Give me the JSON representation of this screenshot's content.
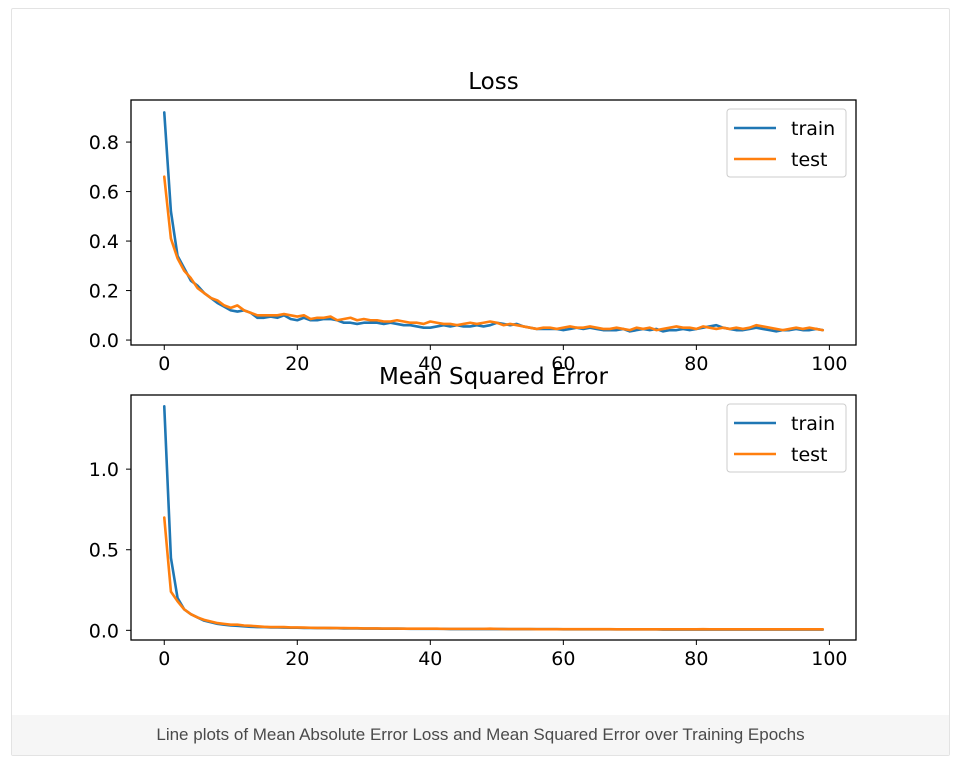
{
  "caption": "Line plots of Mean Absolute Error Loss and Mean Squared Error over Training Epochs",
  "colors": {
    "train": "#1f77b4",
    "test": "#ff7f0e"
  },
  "chart_data": [
    {
      "type": "line",
      "title": "Loss",
      "xlabel": "",
      "ylabel": "",
      "xlim": [
        -5,
        104
      ],
      "ylim": [
        -0.02,
        0.97
      ],
      "xticks": [
        0,
        20,
        40,
        60,
        80,
        100
      ],
      "yticks": [
        0.0,
        0.2,
        0.4,
        0.6,
        0.8
      ],
      "ytick_labels": [
        "0.0",
        "0.2",
        "0.4",
        "0.6",
        "0.8"
      ],
      "legend_position": "top-right",
      "series": [
        {
          "name": "train",
          "values": [
            0.92,
            0.52,
            0.34,
            0.29,
            0.24,
            0.22,
            0.19,
            0.17,
            0.15,
            0.135,
            0.12,
            0.115,
            0.12,
            0.11,
            0.09,
            0.09,
            0.095,
            0.09,
            0.1,
            0.085,
            0.08,
            0.09,
            0.08,
            0.08,
            0.085,
            0.085,
            0.08,
            0.07,
            0.07,
            0.065,
            0.07,
            0.07,
            0.07,
            0.065,
            0.07,
            0.065,
            0.06,
            0.06,
            0.055,
            0.05,
            0.05,
            0.055,
            0.06,
            0.055,
            0.06,
            0.055,
            0.055,
            0.06,
            0.055,
            0.06,
            0.07,
            0.065,
            0.06,
            0.065,
            0.055,
            0.05,
            0.045,
            0.045,
            0.045,
            0.045,
            0.04,
            0.045,
            0.05,
            0.045,
            0.05,
            0.045,
            0.04,
            0.04,
            0.04,
            0.045,
            0.035,
            0.04,
            0.045,
            0.04,
            0.045,
            0.035,
            0.04,
            0.04,
            0.045,
            0.04,
            0.045,
            0.05,
            0.055,
            0.06,
            0.05,
            0.045,
            0.04,
            0.04,
            0.045,
            0.05,
            0.045,
            0.04,
            0.035,
            0.04,
            0.04,
            0.045,
            0.04,
            0.04,
            0.045,
            0.04
          ]
        },
        {
          "name": "test",
          "values": [
            0.66,
            0.41,
            0.33,
            0.28,
            0.25,
            0.21,
            0.19,
            0.17,
            0.16,
            0.14,
            0.13,
            0.14,
            0.12,
            0.11,
            0.1,
            0.1,
            0.1,
            0.1,
            0.105,
            0.1,
            0.095,
            0.1,
            0.085,
            0.09,
            0.09,
            0.095,
            0.08,
            0.085,
            0.09,
            0.08,
            0.085,
            0.08,
            0.08,
            0.075,
            0.075,
            0.08,
            0.075,
            0.07,
            0.07,
            0.065,
            0.075,
            0.07,
            0.065,
            0.065,
            0.06,
            0.065,
            0.07,
            0.065,
            0.07,
            0.075,
            0.07,
            0.06,
            0.065,
            0.06,
            0.055,
            0.05,
            0.045,
            0.05,
            0.05,
            0.045,
            0.05,
            0.055,
            0.05,
            0.05,
            0.055,
            0.05,
            0.045,
            0.045,
            0.05,
            0.045,
            0.04,
            0.05,
            0.045,
            0.05,
            0.04,
            0.045,
            0.05,
            0.055,
            0.05,
            0.05,
            0.045,
            0.055,
            0.05,
            0.045,
            0.05,
            0.045,
            0.05,
            0.045,
            0.05,
            0.06,
            0.055,
            0.05,
            0.045,
            0.04,
            0.045,
            0.05,
            0.045,
            0.05,
            0.045,
            0.04
          ]
        }
      ]
    },
    {
      "type": "line",
      "title": "Mean Squared Error",
      "xlabel": "",
      "ylabel": "",
      "xlim": [
        -5,
        104
      ],
      "ylim": [
        -0.06,
        1.46
      ],
      "xticks": [
        0,
        20,
        40,
        60,
        80,
        100
      ],
      "yticks": [
        0.0,
        0.5,
        1.0
      ],
      "ytick_labels": [
        "0.0",
        "0.5",
        "1.0"
      ],
      "legend_position": "top-right",
      "series": [
        {
          "name": "train",
          "values": [
            1.39,
            0.45,
            0.2,
            0.13,
            0.1,
            0.08,
            0.06,
            0.05,
            0.04,
            0.035,
            0.03,
            0.028,
            0.025,
            0.022,
            0.02,
            0.02,
            0.018,
            0.018,
            0.017,
            0.016,
            0.016,
            0.015,
            0.015,
            0.014,
            0.014,
            0.013,
            0.013,
            0.012,
            0.012,
            0.012,
            0.011,
            0.011,
            0.011,
            0.01,
            0.01,
            0.01,
            0.01,
            0.009,
            0.009,
            0.009,
            0.009,
            0.009,
            0.009,
            0.008,
            0.008,
            0.008,
            0.008,
            0.008,
            0.008,
            0.008,
            0.008,
            0.008,
            0.007,
            0.007,
            0.007,
            0.007,
            0.007,
            0.007,
            0.007,
            0.007,
            0.006,
            0.006,
            0.006,
            0.006,
            0.006,
            0.006,
            0.006,
            0.006,
            0.006,
            0.006,
            0.006,
            0.006,
            0.006,
            0.006,
            0.006,
            0.005,
            0.005,
            0.005,
            0.005,
            0.005,
            0.005,
            0.005,
            0.005,
            0.005,
            0.005,
            0.005,
            0.005,
            0.005,
            0.005,
            0.005,
            0.005,
            0.005,
            0.005,
            0.005,
            0.005,
            0.005,
            0.005,
            0.005,
            0.005,
            0.005
          ]
        },
        {
          "name": "test",
          "values": [
            0.7,
            0.24,
            0.18,
            0.13,
            0.1,
            0.08,
            0.065,
            0.055,
            0.045,
            0.04,
            0.035,
            0.035,
            0.03,
            0.028,
            0.025,
            0.022,
            0.02,
            0.02,
            0.02,
            0.018,
            0.018,
            0.017,
            0.016,
            0.015,
            0.015,
            0.015,
            0.014,
            0.014,
            0.013,
            0.013,
            0.012,
            0.012,
            0.012,
            0.011,
            0.011,
            0.011,
            0.01,
            0.01,
            0.01,
            0.01,
            0.01,
            0.01,
            0.009,
            0.009,
            0.009,
            0.009,
            0.009,
            0.009,
            0.009,
            0.01,
            0.009,
            0.008,
            0.008,
            0.008,
            0.008,
            0.008,
            0.007,
            0.007,
            0.007,
            0.007,
            0.007,
            0.007,
            0.007,
            0.007,
            0.007,
            0.007,
            0.007,
            0.007,
            0.006,
            0.006,
            0.006,
            0.006,
            0.006,
            0.006,
            0.006,
            0.006,
            0.006,
            0.006,
            0.006,
            0.006,
            0.006,
            0.007,
            0.006,
            0.006,
            0.006,
            0.006,
            0.006,
            0.006,
            0.006,
            0.006,
            0.006,
            0.006,
            0.006,
            0.006,
            0.006,
            0.006,
            0.006,
            0.006,
            0.006,
            0.006
          ]
        }
      ]
    }
  ]
}
